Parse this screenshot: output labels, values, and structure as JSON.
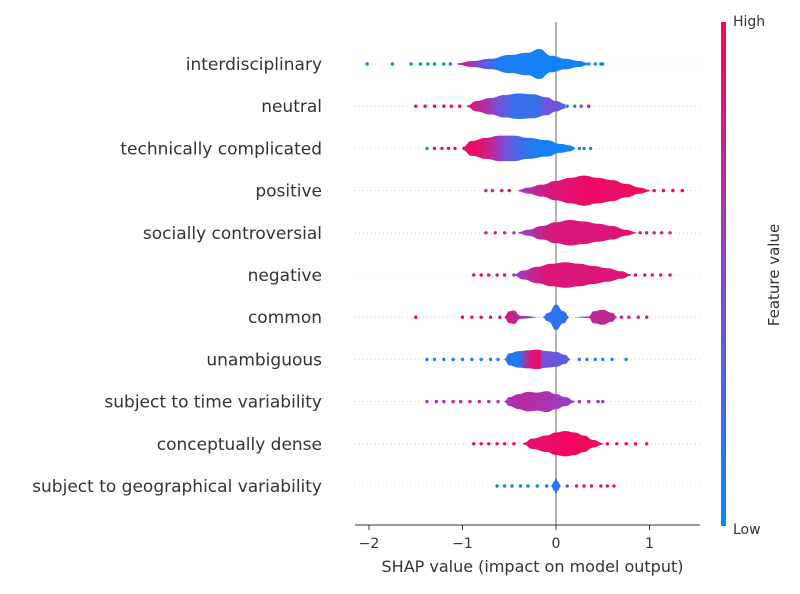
{
  "chart_data": {
    "type": "violin",
    "xlabel": "SHAP value (impact on model output)",
    "xlim": [
      -2.2,
      1.55
    ],
    "xticks": [
      -2,
      -1,
      0,
      1
    ],
    "xtick_labels": [
      "−2",
      "−1",
      "0",
      "1"
    ],
    "colorbar": {
      "label": "Feature value",
      "high_label": "High",
      "low_label": "Low",
      "low_color": "#008bfb",
      "high_color": "#ff0051"
    },
    "features": [
      {
        "name": "interdisciplinary",
        "profile": [
          [
            -1.05,
            0.05
          ],
          [
            -0.9,
            0.2
          ],
          [
            -0.7,
            0.35
          ],
          [
            -0.5,
            0.6
          ],
          [
            -0.3,
            0.75
          ],
          [
            -0.18,
            1.0
          ],
          [
            -0.05,
            0.55
          ],
          [
            0.1,
            0.35
          ],
          [
            0.25,
            0.2
          ],
          [
            0.35,
            0.05
          ]
        ],
        "colors": [
          [
            -1.05,
            0.85
          ],
          [
            -0.9,
            0.6
          ],
          [
            -0.75,
            0.3
          ],
          [
            -0.6,
            0.1
          ],
          [
            0.35,
            0.05
          ]
        ],
        "dots": [
          [
            -2.02,
            0.0
          ],
          [
            -1.75,
            0.0
          ],
          [
            -1.55,
            0.0
          ],
          [
            -1.45,
            0.0
          ],
          [
            -1.37,
            0.0
          ],
          [
            -1.3,
            0.0
          ],
          [
            -1.2,
            0.0
          ],
          [
            -1.13,
            0.1
          ],
          [
            0.35,
            0.0
          ],
          [
            0.42,
            0.0
          ],
          [
            0.48,
            0.0
          ],
          [
            0.5,
            0.0
          ]
        ]
      },
      {
        "name": "neutral",
        "profile": [
          [
            -0.95,
            0.05
          ],
          [
            -0.85,
            0.35
          ],
          [
            -0.7,
            0.55
          ],
          [
            -0.55,
            0.75
          ],
          [
            -0.4,
            0.85
          ],
          [
            -0.25,
            0.8
          ],
          [
            -0.1,
            0.6
          ],
          [
            0.0,
            0.35
          ],
          [
            0.1,
            0.15
          ]
        ],
        "colors": [
          [
            -0.95,
            0.9
          ],
          [
            -0.75,
            0.65
          ],
          [
            -0.6,
            0.4
          ],
          [
            -0.45,
            0.2
          ],
          [
            -0.2,
            0.2
          ],
          [
            -0.08,
            0.45
          ],
          [
            0.1,
            0.3
          ]
        ],
        "dots": [
          [
            -1.5,
            1.0
          ],
          [
            -1.4,
            1.0
          ],
          [
            -1.3,
            1.0
          ],
          [
            -1.2,
            1.0
          ],
          [
            -1.12,
            1.0
          ],
          [
            -1.03,
            1.0
          ],
          [
            0.12,
            0.1
          ],
          [
            0.2,
            0.15
          ],
          [
            0.27,
            0.5
          ],
          [
            0.35,
            0.9
          ]
        ]
      },
      {
        "name": "technically complicated",
        "profile": [
          [
            -1.0,
            0.1
          ],
          [
            -0.9,
            0.5
          ],
          [
            -0.75,
            0.7
          ],
          [
            -0.6,
            0.85
          ],
          [
            -0.45,
            0.85
          ],
          [
            -0.3,
            0.7
          ],
          [
            -0.1,
            0.55
          ],
          [
            0.05,
            0.3
          ],
          [
            0.15,
            0.2
          ],
          [
            0.2,
            0.08
          ]
        ],
        "colors": [
          [
            -1.0,
            0.95
          ],
          [
            -0.85,
            0.9
          ],
          [
            -0.7,
            0.75
          ],
          [
            -0.55,
            0.45
          ],
          [
            -0.4,
            0.25
          ],
          [
            -0.2,
            0.1
          ],
          [
            0.2,
            0.05
          ]
        ],
        "dots": [
          [
            -1.38,
            0.05
          ],
          [
            -1.3,
            0.95
          ],
          [
            -1.22,
            0.95
          ],
          [
            -1.15,
            0.9
          ],
          [
            -1.08,
            0.9
          ],
          [
            0.25,
            0.05
          ],
          [
            0.3,
            0.1
          ],
          [
            0.37,
            0.1
          ]
        ]
      },
      {
        "name": "positive",
        "profile": [
          [
            -0.4,
            0.05
          ],
          [
            -0.3,
            0.2
          ],
          [
            -0.15,
            0.4
          ],
          [
            0.0,
            0.65
          ],
          [
            0.15,
            0.85
          ],
          [
            0.3,
            1.0
          ],
          [
            0.45,
            0.85
          ],
          [
            0.6,
            0.7
          ],
          [
            0.75,
            0.45
          ],
          [
            0.9,
            0.2
          ],
          [
            1.0,
            0.05
          ]
        ],
        "colors": [
          [
            -0.4,
            0.55
          ],
          [
            -0.2,
            0.75
          ],
          [
            0.0,
            0.85
          ],
          [
            0.2,
            0.9
          ],
          [
            0.4,
            0.95
          ],
          [
            0.6,
            0.9
          ],
          [
            1.0,
            0.95
          ]
        ],
        "dots": [
          [
            -0.75,
            0.8
          ],
          [
            -0.68,
            0.8
          ],
          [
            -0.58,
            0.9
          ],
          [
            -0.5,
            0.9
          ],
          [
            1.05,
            1.0
          ],
          [
            1.15,
            1.0
          ],
          [
            1.25,
            1.0
          ],
          [
            1.35,
            1.0
          ]
        ]
      },
      {
        "name": "socially controversial",
        "profile": [
          [
            -0.4,
            0.05
          ],
          [
            -0.3,
            0.2
          ],
          [
            -0.15,
            0.45
          ],
          [
            0.0,
            0.7
          ],
          [
            0.15,
            0.85
          ],
          [
            0.3,
            0.75
          ],
          [
            0.45,
            0.6
          ],
          [
            0.6,
            0.45
          ],
          [
            0.75,
            0.2
          ],
          [
            0.85,
            0.05
          ]
        ],
        "colors": [
          [
            -0.4,
            0.55
          ],
          [
            -0.25,
            0.65
          ],
          [
            -0.1,
            0.8
          ],
          [
            0.1,
            0.85
          ],
          [
            0.3,
            0.85
          ],
          [
            0.6,
            0.85
          ],
          [
            0.85,
            0.9
          ]
        ],
        "dots": [
          [
            -0.75,
            0.8
          ],
          [
            -0.65,
            0.85
          ],
          [
            -0.55,
            0.8
          ],
          [
            -0.45,
            0.6
          ],
          [
            0.9,
            0.85
          ],
          [
            0.97,
            0.85
          ],
          [
            1.05,
            0.8
          ],
          [
            1.13,
            0.85
          ],
          [
            1.22,
            0.8
          ]
        ]
      },
      {
        "name": "negative",
        "profile": [
          [
            -0.45,
            0.05
          ],
          [
            -0.35,
            0.3
          ],
          [
            -0.2,
            0.55
          ],
          [
            -0.05,
            0.75
          ],
          [
            0.1,
            0.85
          ],
          [
            0.25,
            0.75
          ],
          [
            0.4,
            0.6
          ],
          [
            0.55,
            0.45
          ],
          [
            0.7,
            0.25
          ],
          [
            0.8,
            0.05
          ]
        ],
        "colors": [
          [
            -0.45,
            0.55
          ],
          [
            -0.3,
            0.7
          ],
          [
            -0.1,
            0.85
          ],
          [
            0.1,
            0.85
          ],
          [
            0.3,
            0.85
          ],
          [
            0.6,
            0.85
          ],
          [
            0.8,
            0.9
          ]
        ],
        "dots": [
          [
            -0.88,
            0.85
          ],
          [
            -0.8,
            0.9
          ],
          [
            -0.72,
            0.85
          ],
          [
            -0.63,
            0.85
          ],
          [
            -0.55,
            0.85
          ],
          [
            -0.45,
            0.6
          ],
          [
            0.85,
            0.9
          ],
          [
            0.95,
            0.9
          ],
          [
            1.03,
            0.9
          ],
          [
            1.12,
            0.9
          ],
          [
            1.22,
            0.85
          ]
        ]
      },
      {
        "name": "common",
        "profile": [
          [
            -0.55,
            0.05
          ],
          [
            -0.5,
            0.4
          ],
          [
            -0.45,
            0.45
          ],
          [
            -0.38,
            0.1
          ],
          [
            -0.15,
            0.0
          ],
          [
            -0.08,
            0.3
          ],
          [
            0.0,
            0.85
          ],
          [
            0.08,
            0.4
          ],
          [
            0.15,
            0.0
          ],
          [
            0.35,
            0.05
          ],
          [
            0.4,
            0.4
          ],
          [
            0.5,
            0.5
          ],
          [
            0.6,
            0.3
          ],
          [
            0.65,
            0.05
          ]
        ],
        "colors": [
          [
            -0.55,
            0.85
          ],
          [
            -0.45,
            0.75
          ],
          [
            -0.15,
            0.2
          ],
          [
            0.0,
            0.15
          ],
          [
            0.15,
            0.2
          ],
          [
            0.35,
            0.7
          ],
          [
            0.5,
            0.75
          ],
          [
            0.65,
            0.7
          ]
        ],
        "dots": [
          [
            -1.5,
            1.0
          ],
          [
            -1.0,
            0.95
          ],
          [
            -0.9,
            0.9
          ],
          [
            -0.8,
            0.9
          ],
          [
            -0.7,
            0.9
          ],
          [
            -0.6,
            0.85
          ],
          [
            0.7,
            0.75
          ],
          [
            0.78,
            0.8
          ],
          [
            0.88,
            0.75
          ],
          [
            0.97,
            0.75
          ]
        ]
      },
      {
        "name": "unambiguous",
        "profile": [
          [
            -0.55,
            0.05
          ],
          [
            -0.5,
            0.4
          ],
          [
            -0.4,
            0.55
          ],
          [
            -0.3,
            0.6
          ],
          [
            -0.2,
            0.65
          ],
          [
            -0.1,
            0.55
          ],
          [
            0.0,
            0.5
          ],
          [
            0.1,
            0.3
          ],
          [
            0.15,
            0.05
          ]
        ],
        "colors": [
          [
            -0.55,
            0.15
          ],
          [
            -0.4,
            0.1
          ],
          [
            -0.3,
            0.75
          ],
          [
            -0.18,
            0.95
          ],
          [
            -0.15,
            0.45
          ],
          [
            0.0,
            0.35
          ],
          [
            0.15,
            0.3
          ]
        ],
        "dots": [
          [
            -1.38,
            0.05
          ],
          [
            -1.3,
            0.05
          ],
          [
            -1.2,
            0.05
          ],
          [
            -1.1,
            0.05
          ],
          [
            -1.0,
            0.05
          ],
          [
            -0.9,
            0.05
          ],
          [
            -0.8,
            0.05
          ],
          [
            -0.7,
            0.05
          ],
          [
            -0.62,
            0.05
          ],
          [
            0.25,
            0.15
          ],
          [
            0.33,
            0.1
          ],
          [
            0.42,
            0.1
          ],
          [
            0.5,
            0.1
          ],
          [
            0.6,
            0.1
          ],
          [
            0.75,
            0.05
          ]
        ]
      },
      {
        "name": "subject to time variability",
        "profile": [
          [
            -0.55,
            0.05
          ],
          [
            -0.5,
            0.3
          ],
          [
            -0.4,
            0.5
          ],
          [
            -0.3,
            0.65
          ],
          [
            -0.2,
            0.6
          ],
          [
            -0.1,
            0.7
          ],
          [
            0.0,
            0.5
          ],
          [
            0.1,
            0.3
          ],
          [
            0.2,
            0.05
          ]
        ],
        "colors": [
          [
            -0.55,
            0.6
          ],
          [
            -0.35,
            0.7
          ],
          [
            -0.2,
            0.65
          ],
          [
            0.0,
            0.6
          ],
          [
            0.2,
            0.55
          ]
        ],
        "dots": [
          [
            -1.38,
            0.6
          ],
          [
            -1.28,
            0.7
          ],
          [
            -1.2,
            0.7
          ],
          [
            -1.1,
            0.75
          ],
          [
            -1.02,
            0.7
          ],
          [
            -0.92,
            0.7
          ],
          [
            -0.82,
            0.75
          ],
          [
            -0.72,
            0.7
          ],
          [
            -0.62,
            0.65
          ],
          [
            0.25,
            0.7
          ],
          [
            0.35,
            0.65
          ],
          [
            0.45,
            0.7
          ],
          [
            0.5,
            0.65
          ]
        ]
      },
      {
        "name": "conceptually dense",
        "profile": [
          [
            -0.35,
            0.05
          ],
          [
            -0.25,
            0.35
          ],
          [
            -0.1,
            0.55
          ],
          [
            0.0,
            0.75
          ],
          [
            0.1,
            0.85
          ],
          [
            0.2,
            0.75
          ],
          [
            0.3,
            0.55
          ],
          [
            0.4,
            0.25
          ],
          [
            0.5,
            0.05
          ]
        ],
        "colors": [
          [
            -0.35,
            0.9
          ],
          [
            -0.1,
            0.9
          ],
          [
            0.1,
            0.95
          ],
          [
            0.3,
            0.95
          ],
          [
            0.5,
            0.95
          ]
        ],
        "dots": [
          [
            -0.88,
            0.95
          ],
          [
            -0.8,
            0.95
          ],
          [
            -0.72,
            0.95
          ],
          [
            -0.63,
            0.95
          ],
          [
            -0.55,
            0.95
          ],
          [
            -0.45,
            0.95
          ],
          [
            0.55,
            0.95
          ],
          [
            0.65,
            0.95
          ],
          [
            0.75,
            0.95
          ],
          [
            0.85,
            0.95
          ],
          [
            0.97,
            0.95
          ]
        ]
      },
      {
        "name": "subject to geographical variability",
        "profile": [
          [
            -0.05,
            0.05
          ],
          [
            -0.02,
            0.3
          ],
          [
            0.0,
            0.55
          ],
          [
            0.02,
            0.3
          ],
          [
            0.05,
            0.05
          ]
        ],
        "colors": [
          [
            -0.05,
            0.1
          ],
          [
            0.0,
            0.15
          ],
          [
            0.05,
            0.2
          ]
        ],
        "dots": [
          [
            -0.63,
            0.1
          ],
          [
            -0.55,
            0.1
          ],
          [
            -0.47,
            0.1
          ],
          [
            -0.38,
            0.1
          ],
          [
            -0.3,
            0.1
          ],
          [
            -0.2,
            0.15
          ],
          [
            -0.1,
            0.1
          ],
          [
            0.12,
            0.3
          ],
          [
            0.22,
            0.85
          ],
          [
            0.3,
            0.8
          ],
          [
            0.38,
            0.85
          ],
          [
            0.48,
            0.85
          ],
          [
            0.55,
            0.8
          ],
          [
            0.62,
            0.9
          ]
        ]
      }
    ]
  }
}
